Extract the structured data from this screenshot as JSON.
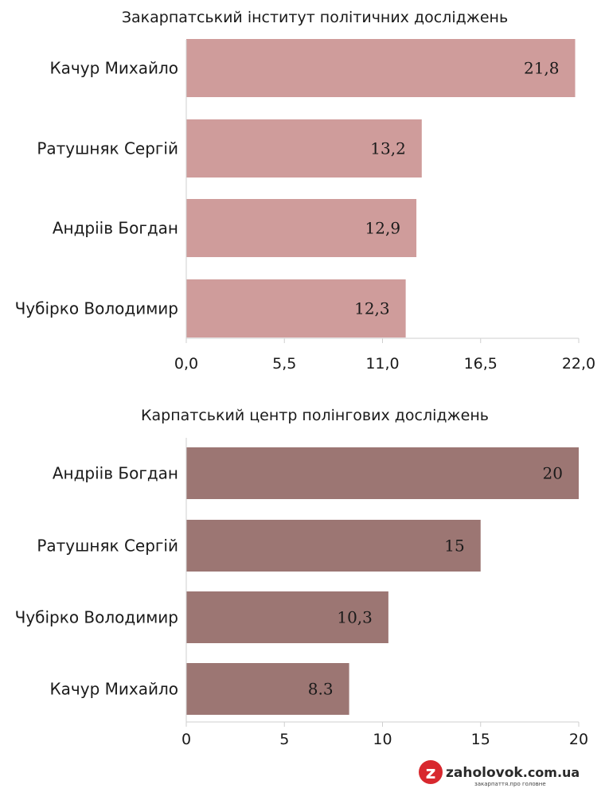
{
  "chart_data": [
    {
      "type": "bar",
      "orientation": "horizontal",
      "title": "Закарпатський інститут політичних досліджень",
      "categories": [
        "Качур Михайло",
        "Ратушняк Сергій",
        "Андріів Богдан",
        "Чубірко Володимир"
      ],
      "values": [
        21.8,
        13.2,
        12.9,
        12.3
      ],
      "value_labels": [
        "21,8",
        "13,2",
        "12,9",
        "12,3"
      ],
      "xlim": [
        0,
        22
      ],
      "xticks": [
        0,
        5.5,
        11,
        16.5,
        22
      ],
      "xtick_labels": [
        "0,0",
        "5,5",
        "11,0",
        "16,5",
        "22,0"
      ],
      "bar_color": "#cf9c9b",
      "grid": false
    },
    {
      "type": "bar",
      "orientation": "horizontal",
      "title": "Карпатський центр полінгових досліджень",
      "categories": [
        "Андріів Богдан",
        "Ратушняк Сергій",
        "Чубірко Володимир",
        "Качур Михайло"
      ],
      "values": [
        20,
        15,
        10.3,
        8.3
      ],
      "value_labels": [
        "20",
        "15",
        "10,3",
        "8.3"
      ],
      "xlim": [
        0,
        20
      ],
      "xticks": [
        0,
        5,
        10,
        15,
        20
      ],
      "xtick_labels": [
        "0",
        "5",
        "10",
        "15",
        "20"
      ],
      "bar_color": "#9c7673",
      "grid": false
    }
  ],
  "logo": {
    "letter": "z",
    "name": "zaholovok",
    "domain": ".com.ua",
    "tagline": "закарпаття.про головне"
  }
}
